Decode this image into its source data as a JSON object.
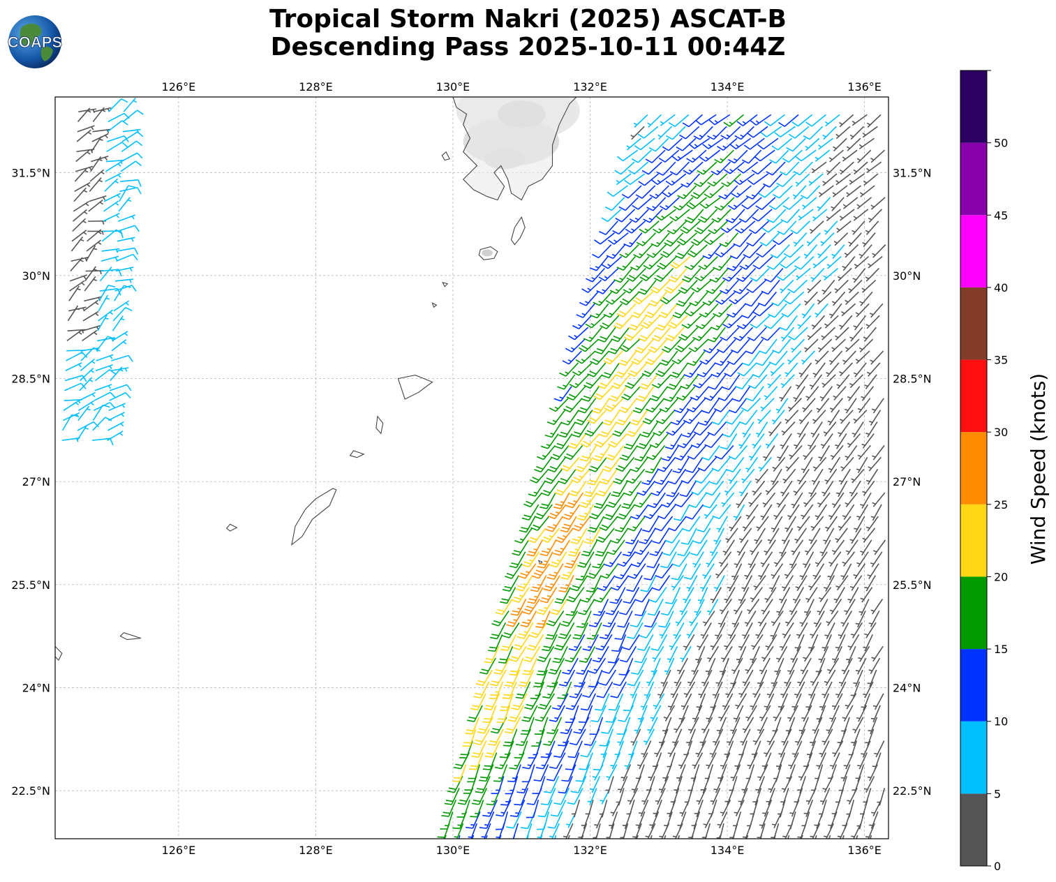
{
  "title": {
    "line1": "Tropical Storm Nakri (2025) ASCAT-B",
    "line2": "Descending Pass 2025-10-11 00:44Z"
  },
  "logo": {
    "text": "COAPS"
  },
  "map": {
    "lon_range": [
      124.2,
      136.35
    ],
    "lat_range": [
      21.8,
      32.6
    ],
    "lon_ticks": [
      {
        "value": 126,
        "label": "126°E"
      },
      {
        "value": 128,
        "label": "128°E"
      },
      {
        "value": 130,
        "label": "130°E"
      },
      {
        "value": 132,
        "label": "132°E"
      },
      {
        "value": 134,
        "label": "134°E"
      },
      {
        "value": 136,
        "label": "136°E"
      }
    ],
    "lat_ticks": [
      {
        "value": 31.5,
        "label": "31.5°N"
      },
      {
        "value": 30,
        "label": "30°N"
      },
      {
        "value": 28.5,
        "label": "28.5°N"
      },
      {
        "value": 27,
        "label": "27°N"
      },
      {
        "value": 25.5,
        "label": "25.5°N"
      },
      {
        "value": 24,
        "label": "24°N"
      },
      {
        "value": 22.5,
        "label": "22.5°N"
      }
    ],
    "gridlines": true
  },
  "colorbar": {
    "label": "Wind Speed (knots)",
    "ticks": [
      {
        "value": 0,
        "label": "0"
      },
      {
        "value": 5,
        "label": "5"
      },
      {
        "value": 10,
        "label": "10"
      },
      {
        "value": 15,
        "label": "15"
      },
      {
        "value": 20,
        "label": "20"
      },
      {
        "value": 25,
        "label": "25"
      },
      {
        "value": 30,
        "label": "30"
      },
      {
        "value": 35,
        "label": "35"
      },
      {
        "value": 40,
        "label": "40"
      },
      {
        "value": 45,
        "label": "45"
      },
      {
        "value": 50,
        "label": "50"
      }
    ],
    "bins": [
      {
        "min": 0,
        "max": 5,
        "color": "#555555"
      },
      {
        "min": 5,
        "max": 10,
        "color": "#00bfff"
      },
      {
        "min": 10,
        "max": 15,
        "color": "#0033ff"
      },
      {
        "min": 15,
        "max": 20,
        "color": "#009900"
      },
      {
        "min": 20,
        "max": 25,
        "color": "#ffd714"
      },
      {
        "min": 25,
        "max": 30,
        "color": "#ff8c00"
      },
      {
        "min": 30,
        "max": 35,
        "color": "#ff1010"
      },
      {
        "min": 35,
        "max": 40,
        "color": "#843c2a"
      },
      {
        "min": 40,
        "max": 45,
        "color": "#ff00ff"
      },
      {
        "min": 45,
        "max": 50,
        "color": "#8800aa"
      },
      {
        "min": 50,
        "max": 55,
        "color": "#2a0060"
      }
    ]
  },
  "land": [
    {
      "name": "kyushu",
      "points": [
        [
          130.0,
          32.6
        ],
        [
          130.05,
          32.45
        ],
        [
          130.2,
          32.35
        ],
        [
          130.15,
          32.2
        ],
        [
          130.25,
          32.0
        ],
        [
          130.15,
          31.8
        ],
        [
          130.35,
          31.6
        ],
        [
          130.15,
          31.4
        ],
        [
          130.3,
          31.25
        ],
        [
          130.5,
          31.15
        ],
        [
          130.65,
          31.1
        ],
        [
          130.75,
          31.3
        ],
        [
          130.6,
          31.5
        ],
        [
          130.7,
          31.6
        ],
        [
          130.8,
          31.4
        ],
        [
          130.85,
          31.2
        ],
        [
          131.0,
          31.1
        ],
        [
          131.1,
          31.3
        ],
        [
          131.3,
          31.4
        ],
        [
          131.45,
          31.6
        ],
        [
          131.45,
          31.9
        ],
        [
          131.55,
          32.2
        ],
        [
          131.7,
          32.5
        ],
        [
          131.8,
          32.6
        ]
      ]
    },
    {
      "name": "tanegashima",
      "points": [
        [
          131.0,
          30.85
        ],
        [
          131.05,
          30.7
        ],
        [
          130.98,
          30.55
        ],
        [
          130.9,
          30.45
        ],
        [
          130.85,
          30.52
        ],
        [
          130.9,
          30.7
        ]
      ]
    },
    {
      "name": "yakushima",
      "points": [
        [
          130.4,
          30.38
        ],
        [
          130.55,
          30.42
        ],
        [
          130.65,
          30.35
        ],
        [
          130.6,
          30.25
        ],
        [
          130.45,
          30.23
        ],
        [
          130.38,
          30.3
        ]
      ]
    },
    {
      "name": "amami",
      "points": [
        [
          129.2,
          28.5
        ],
        [
          129.45,
          28.55
        ],
        [
          129.7,
          28.45
        ],
        [
          129.5,
          28.3
        ],
        [
          129.3,
          28.2
        ],
        [
          129.25,
          28.35
        ]
      ]
    },
    {
      "name": "tokunoshima",
      "points": [
        [
          128.9,
          27.95
        ],
        [
          128.98,
          27.85
        ],
        [
          128.95,
          27.7
        ],
        [
          128.88,
          27.78
        ]
      ]
    },
    {
      "name": "okinoerabu",
      "points": [
        [
          128.55,
          27.45
        ],
        [
          128.7,
          27.4
        ],
        [
          128.6,
          27.35
        ],
        [
          128.5,
          27.38
        ]
      ]
    },
    {
      "name": "okinawa",
      "points": [
        [
          128.3,
          26.88
        ],
        [
          128.2,
          26.65
        ],
        [
          127.95,
          26.45
        ],
        [
          127.8,
          26.2
        ],
        [
          127.65,
          26.08
        ],
        [
          127.7,
          26.35
        ],
        [
          127.85,
          26.6
        ],
        [
          128.0,
          26.75
        ],
        [
          128.25,
          26.9
        ]
      ]
    },
    {
      "name": "kumejima",
      "points": [
        [
          126.75,
          26.38
        ],
        [
          126.85,
          26.33
        ],
        [
          126.75,
          26.28
        ],
        [
          126.7,
          26.32
        ]
      ]
    },
    {
      "name": "miyako",
      "points": [
        [
          125.2,
          24.8
        ],
        [
          125.45,
          24.72
        ],
        [
          125.25,
          24.7
        ],
        [
          125.15,
          24.75
        ]
      ]
    },
    {
      "name": "tokara-1",
      "points": [
        [
          129.85,
          29.9
        ],
        [
          129.92,
          29.88
        ],
        [
          129.88,
          29.84
        ]
      ]
    },
    {
      "name": "tokara-2",
      "points": [
        [
          129.7,
          29.6
        ],
        [
          129.76,
          29.57
        ],
        [
          129.72,
          29.54
        ]
      ]
    },
    {
      "name": "yakushin",
      "points": [
        [
          129.9,
          31.8
        ],
        [
          129.95,
          31.7
        ],
        [
          129.88,
          31.68
        ],
        [
          129.84,
          31.75
        ]
      ]
    },
    {
      "name": "ishigaki",
      "points": [
        [
          124.2,
          24.6
        ],
        [
          124.3,
          24.5
        ],
        [
          124.25,
          24.4
        ],
        [
          124.2,
          24.45
        ]
      ]
    },
    {
      "name": "daito",
      "points": [
        [
          131.25,
          25.85
        ],
        [
          131.3,
          25.83
        ],
        [
          131.27,
          25.8
        ]
      ]
    }
  ],
  "terrain": [
    {
      "center": [
        130.95,
        32.4
      ],
      "rx": 0.9,
      "ry": 0.45,
      "color": "#e8e8e8"
    },
    {
      "center": [
        130.85,
        31.95
      ],
      "rx": 0.7,
      "ry": 0.35,
      "color": "#dddddd"
    },
    {
      "center": [
        131.0,
        32.35
      ],
      "rx": 0.35,
      "ry": 0.2,
      "color": "#cfcfcf"
    },
    {
      "center": [
        130.75,
        31.7
      ],
      "rx": 0.3,
      "ry": 0.15,
      "color": "#d5d5d5"
    },
    {
      "center": [
        130.5,
        30.33
      ],
      "rx": 0.08,
      "ry": 0.05,
      "color": "#cfcfcf"
    }
  ]
}
